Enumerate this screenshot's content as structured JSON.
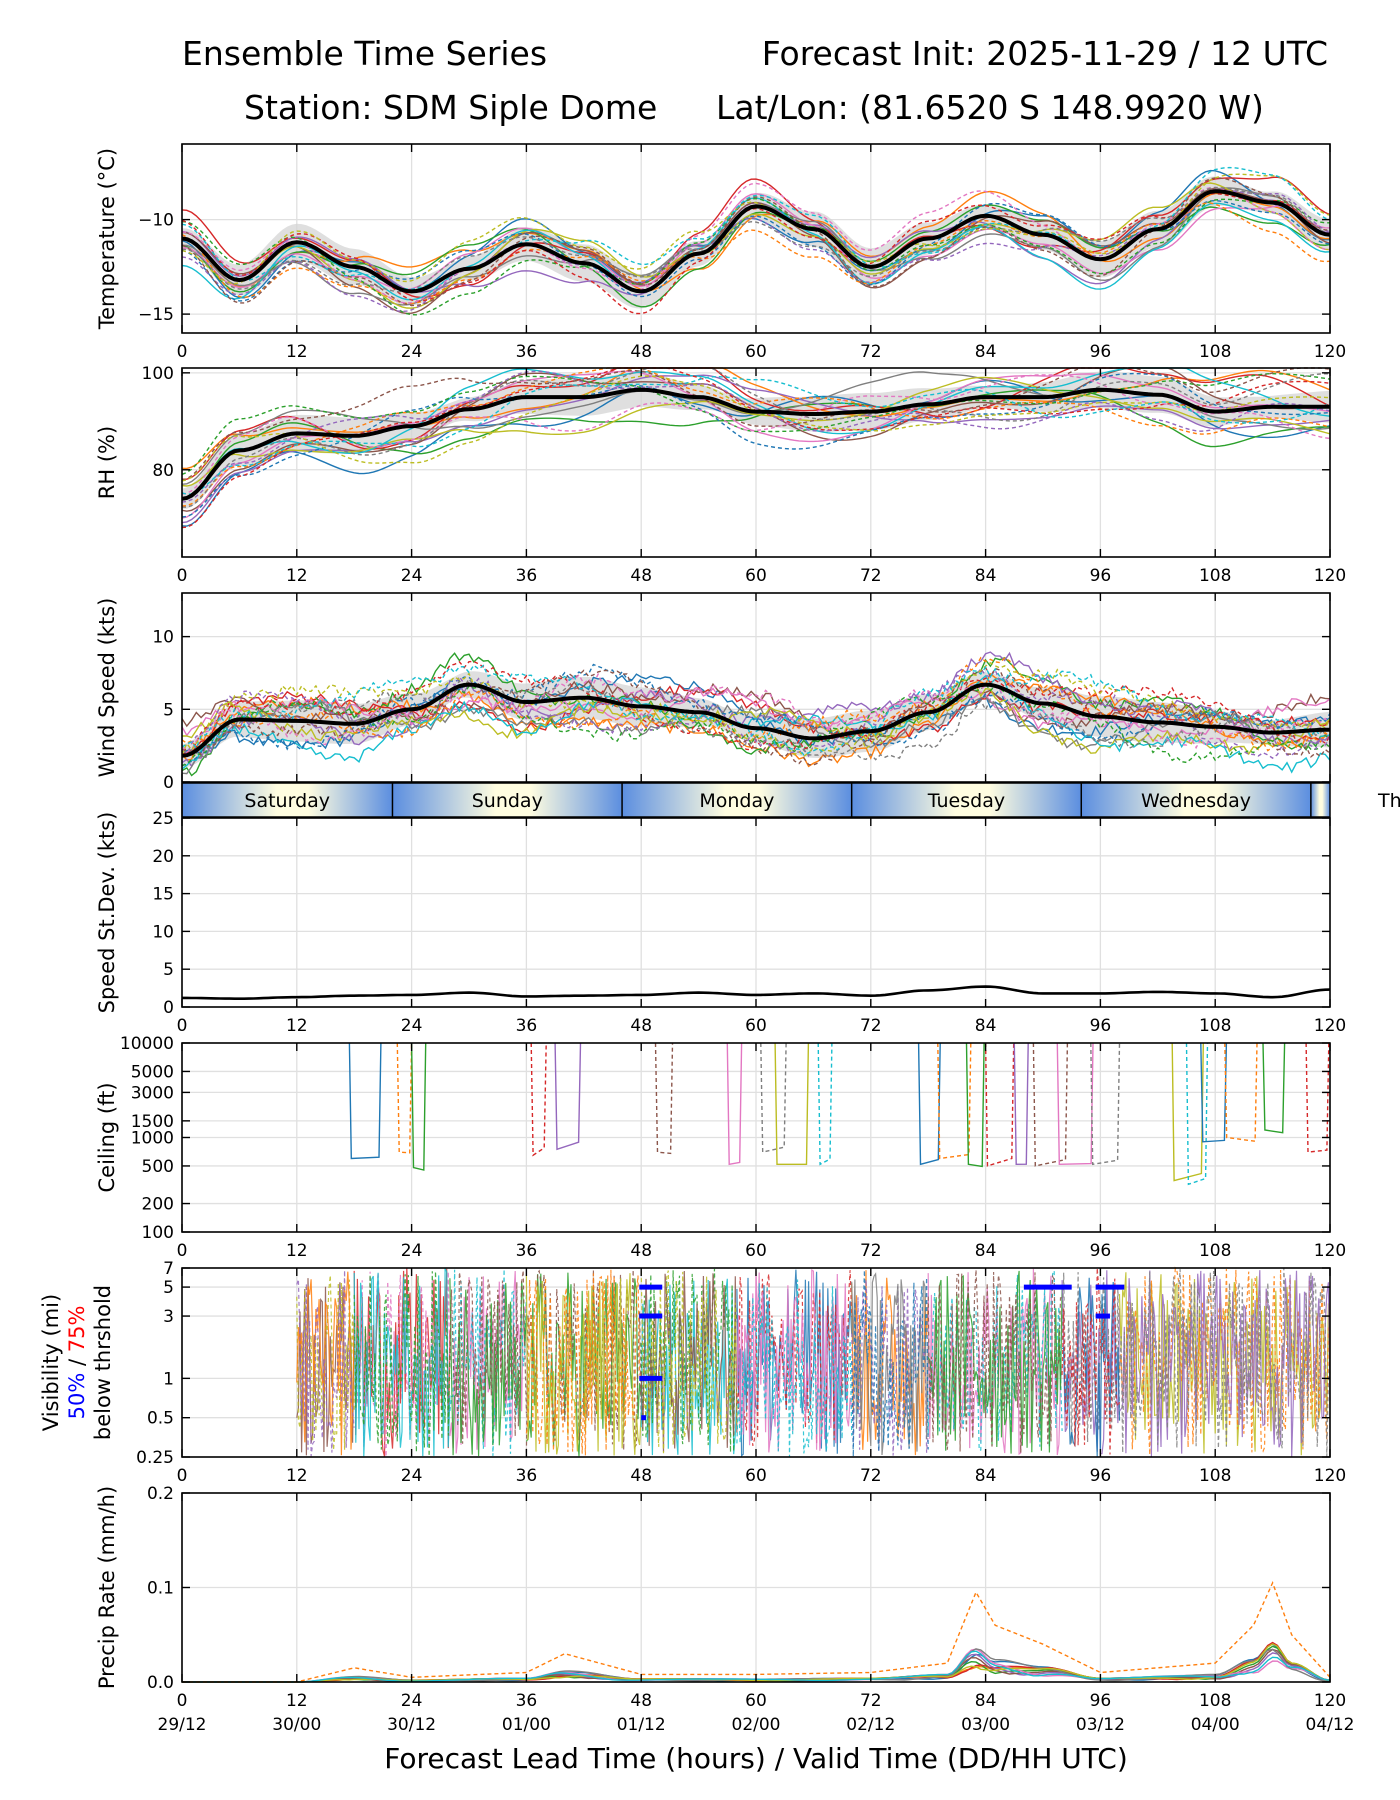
{
  "header": {
    "title_left": "Ensemble Time Series",
    "title_right": "Forecast Init: 2025-11-29 / 12 UTC",
    "station": "Station: SDM  Siple Dome",
    "latlon": "Lat/Lon: (81.6520 S 148.9920 W)"
  },
  "chart_data": [
    {
      "type": "line",
      "id": "temp",
      "ylabel": "Temperature (°C)",
      "ylim": [
        -16,
        -6
      ],
      "yticks": [
        -15,
        -10
      ],
      "ytick_labels": [
        "−15",
        "−10"
      ],
      "x": [
        0,
        6,
        12,
        18,
        24,
        30,
        36,
        42,
        48,
        54,
        60,
        66,
        72,
        78,
        84,
        90,
        96,
        102,
        108,
        114,
        120
      ],
      "series": [
        {
          "name": "ensemble mean",
          "values": [
            -11,
            -13.2,
            -11.2,
            -12.5,
            -13.8,
            -12.6,
            -11.3,
            -12.3,
            -13.8,
            -11.8,
            -9.3,
            -10.5,
            -12.5,
            -11,
            -9.8,
            -10.8,
            -12.1,
            -10.5,
            -8.5,
            -9.1,
            -10.8
          ]
        }
      ]
    },
    {
      "type": "line",
      "id": "rh",
      "ylabel": "RH (%)",
      "ylim": [
        62,
        101
      ],
      "yticks": [
        80,
        100
      ],
      "ytick_labels": [
        "80",
        "100"
      ],
      "x": [
        0,
        6,
        12,
        18,
        24,
        30,
        36,
        42,
        48,
        54,
        60,
        66,
        72,
        78,
        84,
        90,
        96,
        102,
        108,
        114,
        120
      ],
      "series": [
        {
          "name": "ensemble mean",
          "values": [
            74,
            84,
            87.5,
            87,
            89,
            92.5,
            95,
            95,
            96.5,
            95,
            92,
            91.5,
            92,
            93.5,
            95,
            95,
            96.5,
            95.5,
            92,
            93,
            93
          ]
        }
      ]
    },
    {
      "type": "line",
      "id": "wspd",
      "ylabel": "Wind Speed (kts)",
      "ylim": [
        0,
        13
      ],
      "yticks": [
        0,
        5,
        10
      ],
      "ytick_labels": [
        "0",
        "5",
        "10"
      ],
      "x": [
        0,
        6,
        12,
        18,
        24,
        30,
        36,
        42,
        48,
        54,
        60,
        66,
        72,
        78,
        84,
        90,
        96,
        102,
        108,
        114,
        120
      ],
      "series": [
        {
          "name": "ensemble mean",
          "values": [
            1.8,
            4.3,
            4.2,
            4,
            5,
            6.7,
            5.5,
            5.8,
            5.2,
            4.8,
            3.7,
            3,
            3.5,
            4.8,
            6.7,
            5.4,
            4.5,
            4.1,
            3.8,
            3.4,
            3.6
          ]
        }
      ]
    },
    {
      "type": "line",
      "id": "sdev",
      "ylabel": "Speed St.Dev. (kts)",
      "ylim": [
        0,
        25
      ],
      "yticks": [
        0,
        5,
        10,
        15,
        20,
        25
      ],
      "ytick_labels": [
        "0",
        "5",
        "10",
        "15",
        "20",
        "25"
      ],
      "x": [
        0,
        6,
        12,
        18,
        24,
        30,
        36,
        42,
        48,
        54,
        60,
        66,
        72,
        78,
        84,
        90,
        96,
        102,
        108,
        114,
        120
      ],
      "series": [
        {
          "name": "std dev",
          "values": [
            1.2,
            1.1,
            1.3,
            1.5,
            1.6,
            1.9,
            1.4,
            1.5,
            1.6,
            1.9,
            1.6,
            1.8,
            1.5,
            2.2,
            2.7,
            1.8,
            1.8,
            2,
            1.8,
            1.3,
            2.3
          ]
        }
      ]
    },
    {
      "type": "line",
      "id": "ceil",
      "ylabel": "Ceiling (ft)",
      "ylim": [
        100,
        10000
      ],
      "yscale": "log",
      "yticks": [
        100,
        200,
        500,
        1000,
        1500,
        3000,
        5000,
        10000
      ],
      "ytick_labels": [
        "100",
        "200",
        "500",
        "1000",
        "1500",
        "3000",
        "5000",
        "10000"
      ]
    },
    {
      "type": "line",
      "id": "vis",
      "ylabel": "Visibility (mi)",
      "ylabel_50": "50%",
      "ylabel_sep": " / ",
      "ylabel_75": "75%",
      "ylabel_2": "below thrshold",
      "ylim": [
        0.25,
        7
      ],
      "yscale": "log",
      "yticks": [
        0.25,
        0.5,
        1,
        3,
        5,
        7
      ],
      "ytick_labels": [
        "0.25",
        "0.5",
        "1",
        "3",
        "5",
        "7"
      ]
    },
    {
      "type": "line",
      "id": "precip",
      "ylabel": "Precip Rate (mm/h)",
      "ylim": [
        0,
        0.2
      ],
      "yticks": [
        0,
        0.1,
        0.2
      ],
      "ytick_labels": [
        "0.0",
        "0.1",
        "0.2"
      ],
      "x": [
        0,
        12,
        18,
        24,
        36,
        40,
        48,
        60,
        72,
        80,
        83,
        85,
        90,
        96,
        108,
        112,
        114,
        116,
        120
      ],
      "series": [
        {
          "name": "member max",
          "values": [
            0,
            0,
            0.015,
            0.005,
            0.01,
            0.03,
            0.008,
            0.008,
            0.01,
            0.02,
            0.095,
            0.06,
            0.04,
            0.01,
            0.02,
            0.06,
            0.105,
            0.05,
            0.005
          ]
        }
      ]
    }
  ],
  "xaxis": {
    "ticks": [
      0,
      12,
      24,
      36,
      48,
      60,
      72,
      84,
      96,
      108,
      120
    ],
    "tick_labels": [
      "0",
      "12",
      "24",
      "36",
      "48",
      "60",
      "72",
      "84",
      "96",
      "108",
      "120"
    ],
    "valid_labels": [
      "29/12",
      "30/00",
      "30/12",
      "01/00",
      "01/12",
      "02/00",
      "02/12",
      "03/00",
      "03/12",
      "04/00",
      "04/12"
    ],
    "label": "Forecast Lead Time (hours) / Valid Time (DD/HH UTC)"
  },
  "days": [
    "Saturday",
    "Sunday",
    "Monday",
    "Tuesday",
    "Wednesday",
    "Th"
  ],
  "colors": {
    "members": [
      "#1f77b4",
      "#ff7f0e",
      "#2ca02c",
      "#d62728",
      "#9467bd",
      "#8c564b",
      "#e377c2",
      "#7f7f7f",
      "#bcbd22",
      "#17becf"
    ],
    "mean": "#000000",
    "spread": "#d4d4d4",
    "grid": "#e0e0e0",
    "day_band": "#fffde0",
    "day_edge": "#5b8ee0",
    "vis50": "#0000ff",
    "vis75": "#ff0000"
  }
}
